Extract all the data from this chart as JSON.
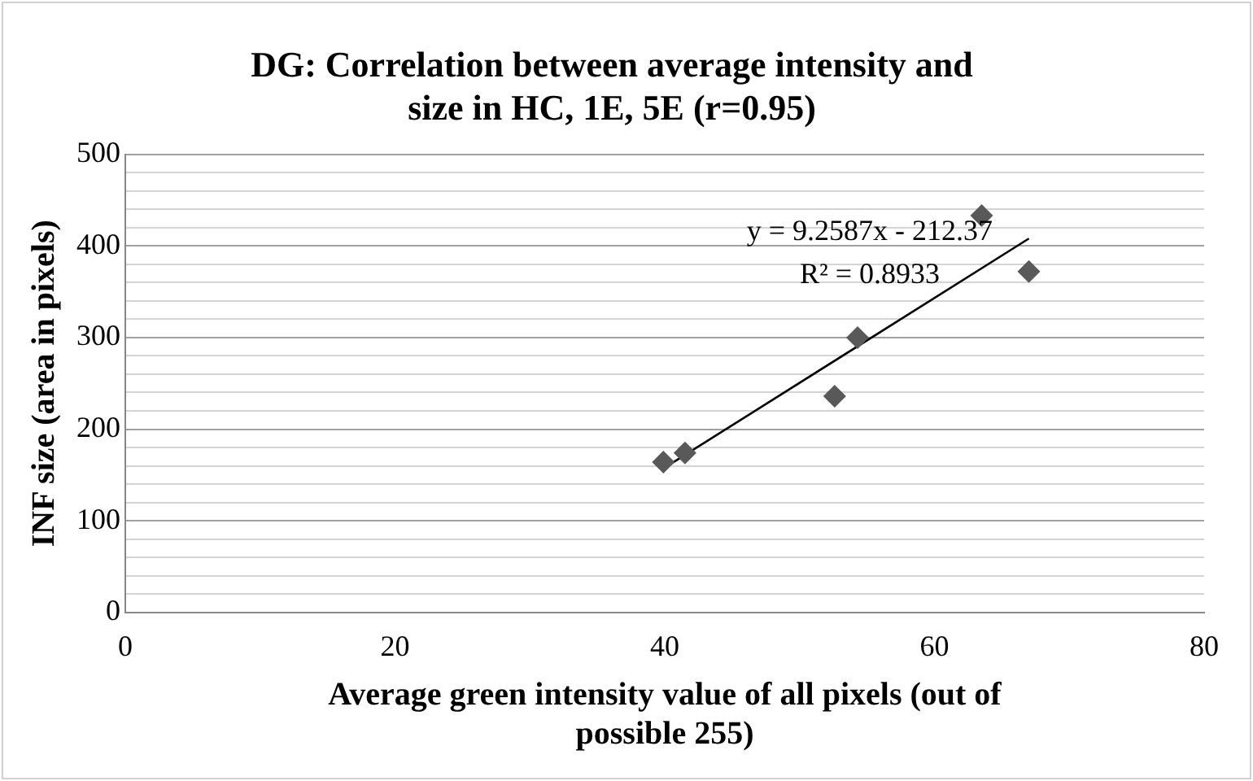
{
  "chart_data": {
    "type": "scatter",
    "title": "DG: Correlation between average intensity and size in HC, 1E, 5E (r=0.95)",
    "xlabel": "Average green intensity value of all pixels (out of possible 255)",
    "ylabel": "INF size (area in pixels)",
    "x": [
      39.9,
      41.5,
      52.6,
      54.3,
      63.5,
      67.0
    ],
    "series": [
      {
        "color": "#595959",
        "values": [
          164,
          174,
          236,
          300,
          433,
          372
        ],
        "marker": "diamond"
      },
      {
        "type": "line",
        "color": "#000000",
        "x": [
          39.9,
          67.0
        ],
        "values": [
          157,
          408
        ],
        "marker": "none"
      }
    ],
    "annotations": [
      "y = 9.2587x - 212.37",
      "R² = 0.8933"
    ],
    "xlim": [
      0,
      80
    ],
    "xticks": [
      0,
      20,
      40,
      60,
      80
    ],
    "ylim": [
      0,
      500
    ],
    "yticks": [
      0,
      {
        "value": 20,
        "label": null
      },
      {
        "value": 40,
        "label": null
      },
      {
        "value": 60,
        "label": null
      },
      {
        "value": 80,
        "label": null
      },
      100,
      {
        "value": 120,
        "label": null
      },
      {
        "value": 140,
        "label": null
      },
      {
        "value": 160,
        "label": null
      },
      {
        "value": 180,
        "label": null
      },
      200,
      {
        "value": 220,
        "label": null
      },
      {
        "value": 240,
        "label": null
      },
      {
        "value": 260,
        "label": null
      },
      {
        "value": 280,
        "label": null
      },
      300,
      {
        "value": 320,
        "label": null
      },
      {
        "value": 340,
        "label": null
      },
      {
        "value": 360,
        "label": null
      },
      {
        "value": 380,
        "label": null
      },
      400,
      {
        "value": 420,
        "label": null
      },
      {
        "value": 440,
        "label": null
      },
      {
        "value": 460,
        "label": null
      },
      {
        "value": 480,
        "label": null
      },
      500
    ],
    "grid": "y",
    "legend": false
  }
}
